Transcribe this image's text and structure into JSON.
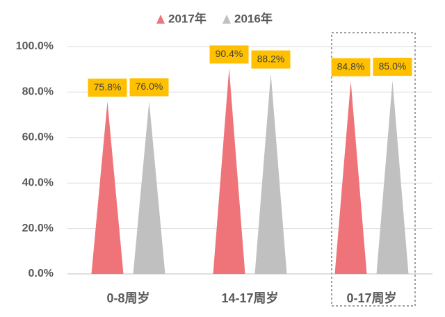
{
  "chart_data": {
    "type": "bar",
    "categories": [
      "0-8周岁",
      "14-17周岁",
      "0-17周岁"
    ],
    "series": [
      {
        "name": "2017年",
        "color": "#ee7479",
        "values": [
          75.8,
          90.4,
          84.8
        ],
        "value_labels": [
          "75.8%",
          "90.4%",
          "84.8%"
        ]
      },
      {
        "name": "2016年",
        "color": "#c0c0c0",
        "values": [
          76.0,
          88.2,
          85.0
        ],
        "value_labels": [
          "76.0%",
          "88.2%",
          "85.0%"
        ]
      }
    ],
    "ylim": [
      0,
      100
    ],
    "yticks": [
      {
        "value": 0,
        "label": "0.0%"
      },
      {
        "value": 20,
        "label": "20.0%"
      },
      {
        "value": 40,
        "label": "40.0%"
      },
      {
        "value": 60,
        "label": "60.0%"
      },
      {
        "value": 80,
        "label": "80.0%"
      },
      {
        "value": 100,
        "label": "100.0%"
      }
    ],
    "grid": true,
    "legend": "top"
  }
}
